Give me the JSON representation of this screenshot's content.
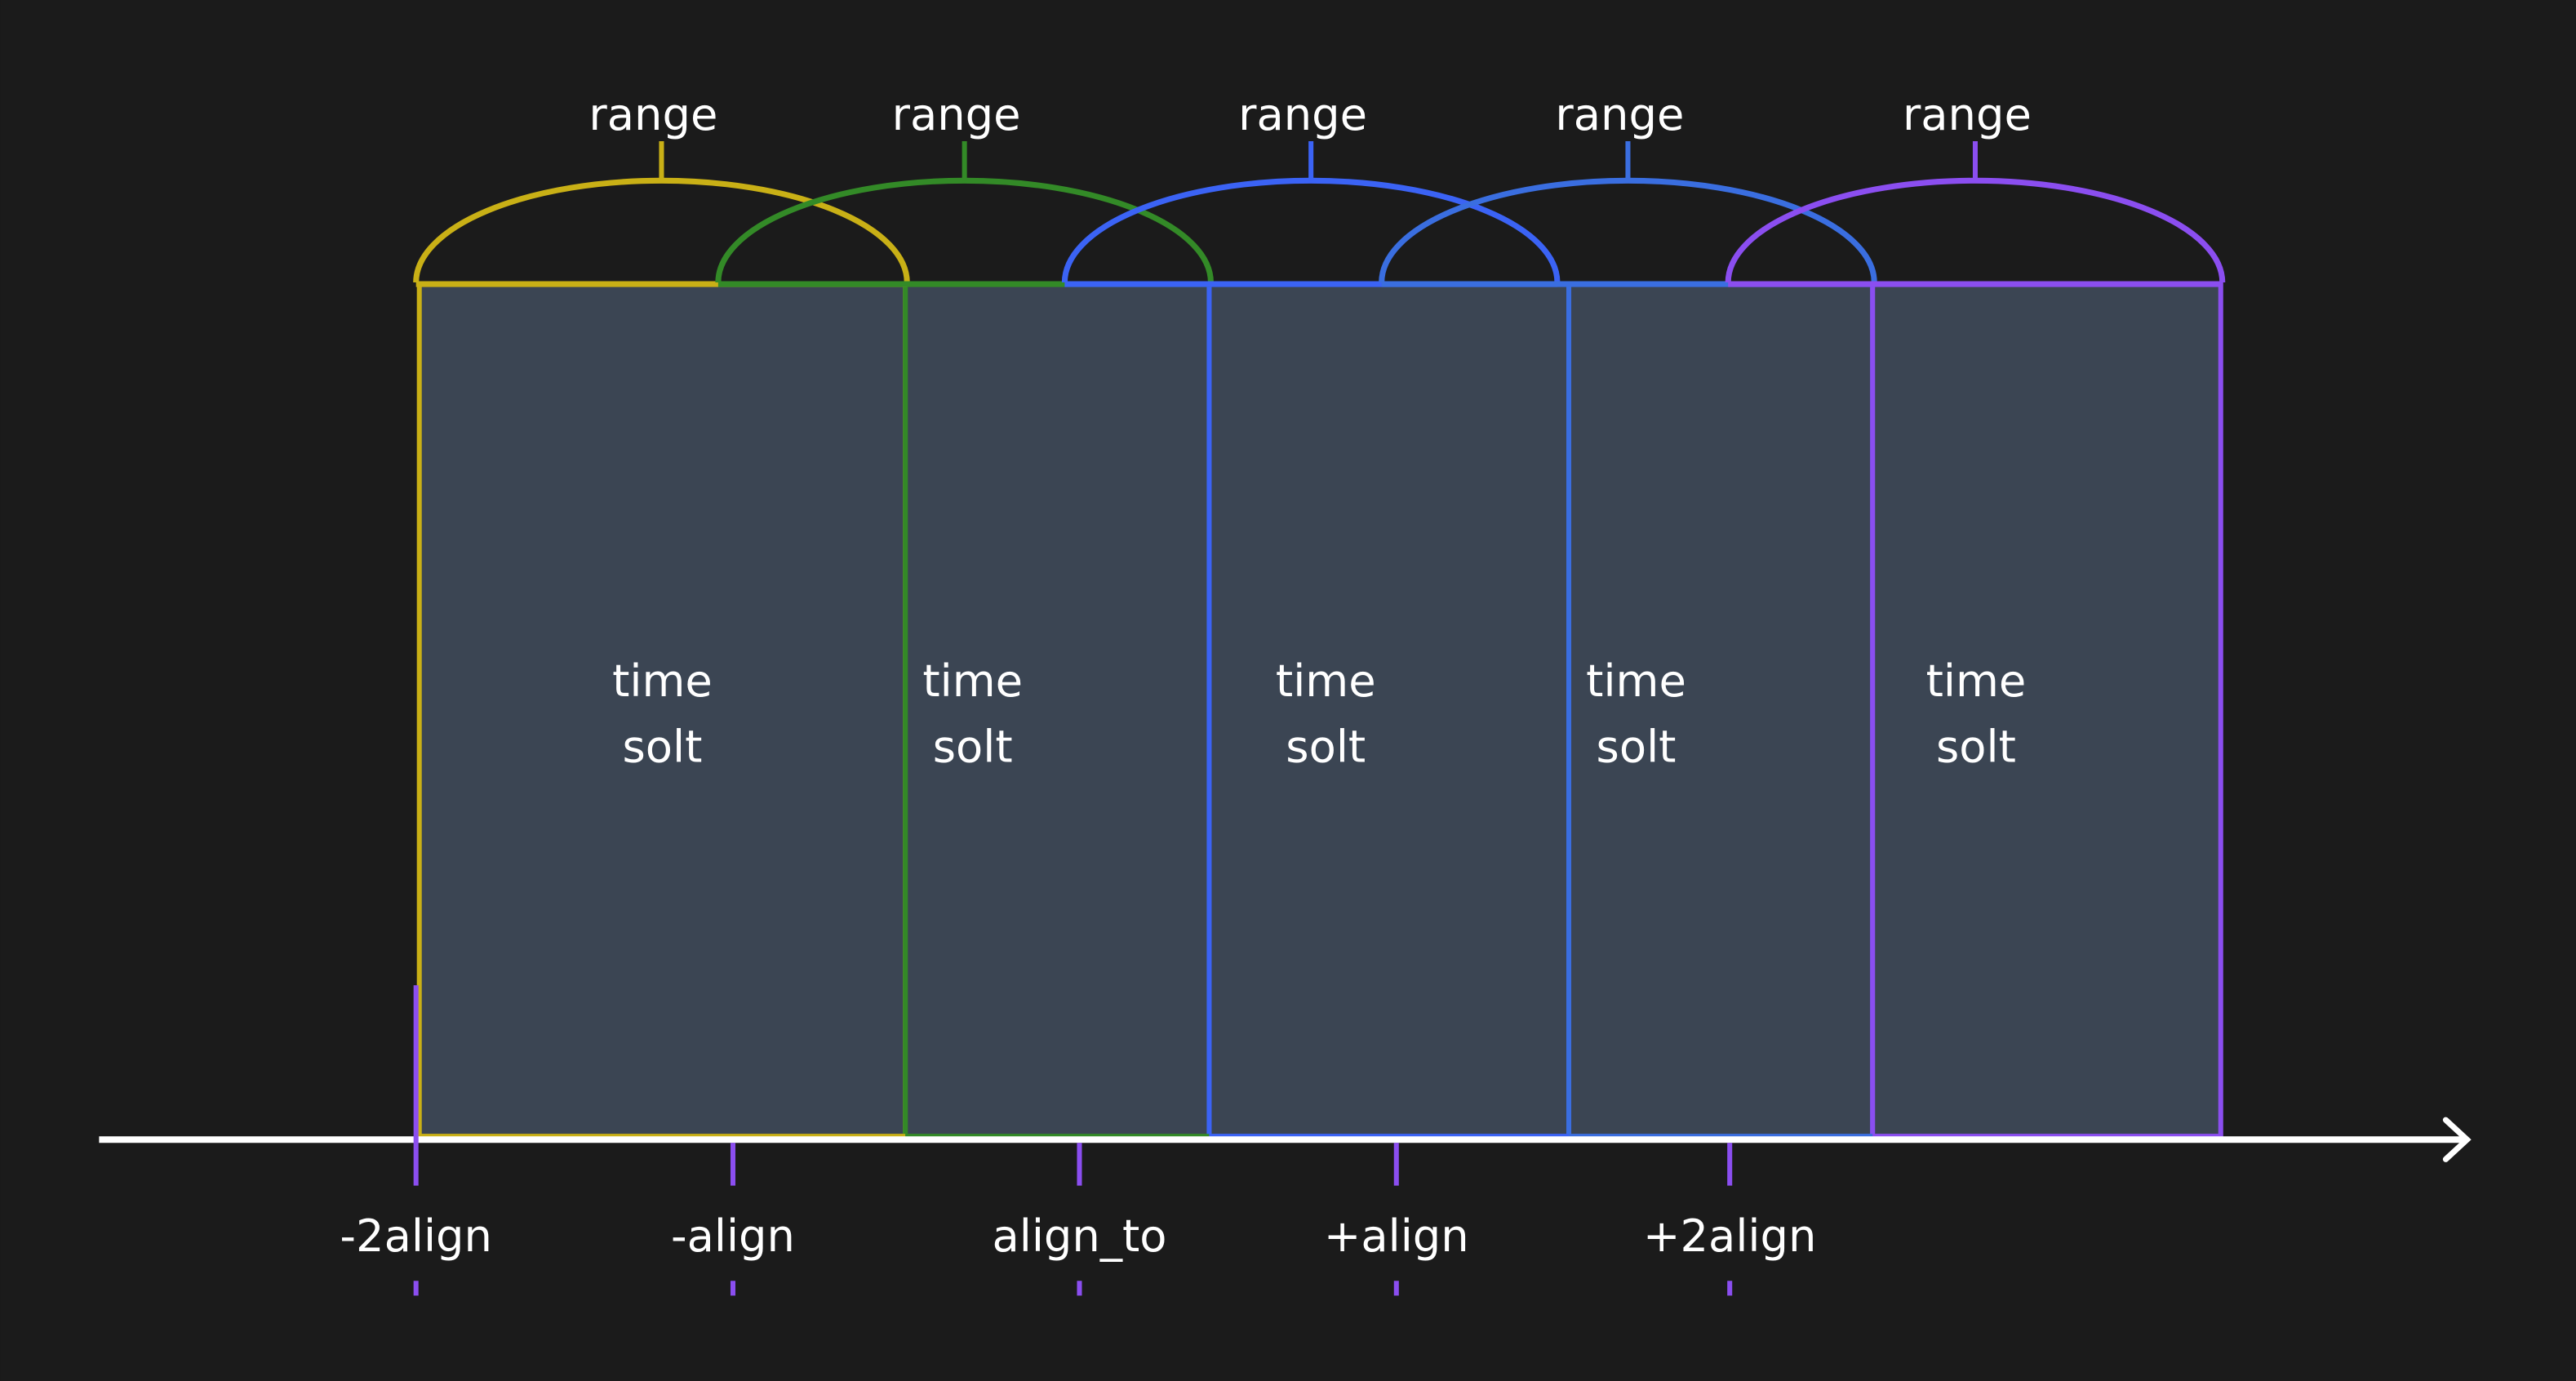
{
  "colors": {
    "background": "#1b1b1b",
    "slot_fill": "#3b4553",
    "axis": "#ffffff",
    "tick": "#8b4ef0"
  },
  "slots": [
    {
      "range_label": "range",
      "line1": "time",
      "line2": "solt",
      "color": "#c9b016"
    },
    {
      "range_label": "range",
      "line1": "time",
      "line2": "solt",
      "color": "#338a27"
    },
    {
      "range_label": "range",
      "line1": "time",
      "line2": "solt",
      "color": "#3b63f5"
    },
    {
      "range_label": "range",
      "line1": "time",
      "line2": "solt",
      "color": "#3a6ee0"
    },
    {
      "range_label": "range",
      "line1": "time",
      "line2": "solt",
      "color": "#8b4ef0"
    }
  ],
  "ticks": [
    {
      "label": "-2align"
    },
    {
      "label": "-align"
    },
    {
      "label": "align_to"
    },
    {
      "label": "+align"
    },
    {
      "label": "+2align"
    }
  ]
}
